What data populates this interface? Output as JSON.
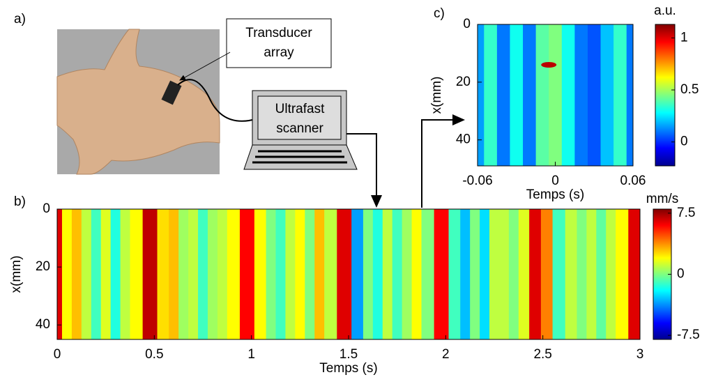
{
  "diagram": {
    "label": "a)",
    "transducer": [
      "Transducer",
      "array"
    ],
    "scanner": [
      "Ultrafast",
      "scanner"
    ]
  },
  "chart_data": [
    {
      "type": "heatmap",
      "panel_label": "b)",
      "xlabel": "Temps (s)",
      "ylabel": "x(mm)",
      "x": [
        0,
        0.05,
        0.1,
        0.15,
        0.2,
        0.25,
        0.3,
        0.35,
        0.4,
        0.48,
        0.55,
        0.6,
        0.65,
        0.7,
        0.75,
        0.8,
        0.85,
        0.9,
        0.98,
        1.05,
        1.1,
        1.15,
        1.2,
        1.25,
        1.3,
        1.35,
        1.4,
        1.48,
        1.55,
        1.6,
        1.65,
        1.7,
        1.75,
        1.8,
        1.85,
        1.9,
        1.98,
        2.05,
        2.1,
        2.15,
        2.2,
        2.25,
        2.3,
        2.35,
        2.4,
        2.46,
        2.52,
        2.58,
        2.65,
        2.7,
        2.75,
        2.8,
        2.85,
        2.9,
        2.98
      ],
      "values": [
        6.5,
        2,
        3,
        1,
        -1,
        1.5,
        -1.5,
        1,
        2,
        7,
        2.5,
        3,
        0.5,
        1,
        -1,
        0.5,
        1,
        2,
        6,
        2,
        0,
        -1,
        1,
        2,
        0,
        3,
        1,
        6.5,
        -3.5,
        0,
        -1.5,
        1,
        -1,
        0.5,
        2,
        0,
        6,
        -1,
        -3,
        0,
        -2.5,
        1,
        1,
        0,
        1.5,
        6.5,
        4,
        -1,
        1,
        0,
        1,
        -0.5,
        1,
        2,
        6.5
      ],
      "xlim": [
        0,
        3
      ],
      "ylim": [
        0,
        45
      ],
      "xticks": [
        0,
        0.5,
        1,
        1.5,
        2,
        2.5,
        3
      ],
      "yticks": [
        0,
        20,
        40
      ],
      "colorbar": {
        "label": "mm/s",
        "lim": [
          -8,
          8
        ],
        "ticks": [
          7.5,
          0,
          -7.5
        ]
      }
    },
    {
      "type": "heatmap",
      "panel_label": "c)",
      "xlabel": "Temps (s)",
      "ylabel": "x(mm)",
      "x": [
        -0.06,
        -0.05,
        -0.04,
        -0.03,
        -0.02,
        -0.01,
        0,
        0.01,
        0.02,
        0.03,
        0.04,
        0.05,
        0.06
      ],
      "values": [
        0.15,
        0.35,
        0.1,
        0.3,
        0.1,
        0.4,
        0.45,
        0.3,
        0.1,
        0.05,
        0.2,
        0.35,
        0.1
      ],
      "peak": {
        "x": -0.005,
        "y": 14,
        "value": 1.05
      },
      "xlim": [
        -0.06,
        0.06
      ],
      "ylim": [
        0,
        49
      ],
      "xticks": [
        -0.06,
        0,
        0.06
      ],
      "yticks": [
        0,
        20,
        40
      ],
      "colorbar": {
        "label": "a.u.",
        "lim": [
          -0.23,
          1.13
        ],
        "ticks": [
          1,
          0.5,
          0
        ]
      }
    }
  ]
}
